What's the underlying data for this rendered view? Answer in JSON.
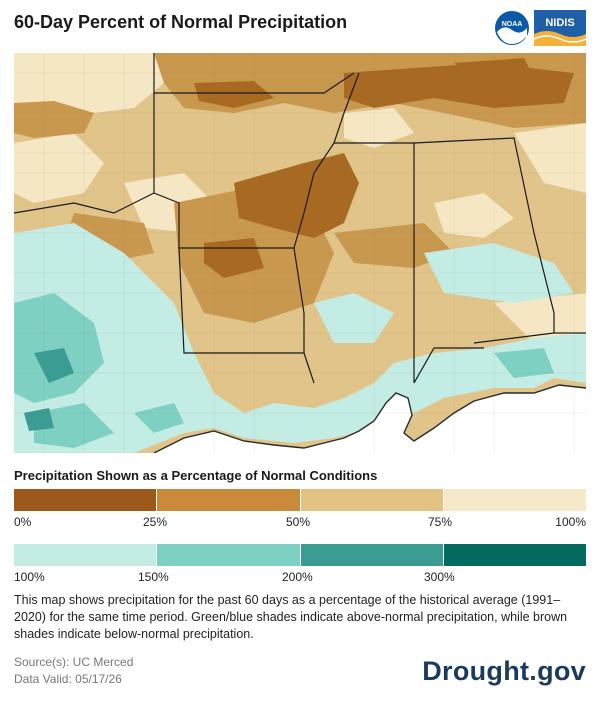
{
  "header": {
    "title": "60-Day Percent of Normal Precipitation",
    "logos": [
      {
        "name": "NOAA",
        "icon": "noaa-logo-icon",
        "text": "NOAA"
      },
      {
        "name": "NIDIS",
        "icon": "nidis-logo-icon",
        "text": "NIDIS"
      }
    ]
  },
  "legend": {
    "title": "Precipitation Shown as a Percentage of Normal Conditions",
    "below_normal": {
      "colors": [
        "#9b5a1b",
        "#c98a3a",
        "#e3c384",
        "#f6e9c9"
      ],
      "ticks": [
        "0%",
        "25%",
        "50%",
        "75%",
        "100%"
      ]
    },
    "above_normal": {
      "colors": [
        "#c3ece5",
        "#7ed0c3",
        "#3a9c92",
        "#026a5e"
      ],
      "ticks": [
        "100%",
        "150%",
        "200%",
        "300%"
      ]
    }
  },
  "description": "This map shows precipitation for the past 60 days as a percentage of the historical average (1991–2020) for the same time period. Green/blue shades indicate above-normal precipitation, while brown shades indicate below-normal precipitation.",
  "source": {
    "line1": "Source(s): UC Merced",
    "line2": "Data Valid: 05/17/26"
  },
  "brand": "Drought.gov",
  "map": {
    "land_palette": {
      "dark_brown": "#a86a22",
      "mid_brown": "#c9984f",
      "tan": "#e0c489",
      "cream": "#f5e7c4",
      "light_teal": "#c3ece5",
      "teal": "#7ed0c3",
      "dark_teal": "#3a9c92"
    },
    "water_color": "#ffffff"
  }
}
